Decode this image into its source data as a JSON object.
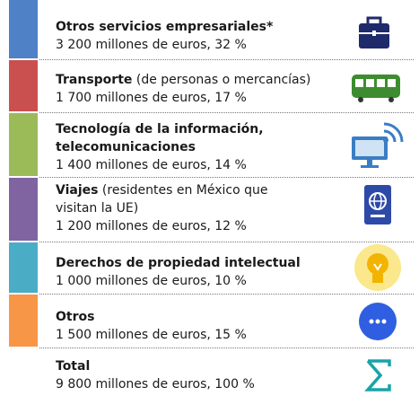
{
  "items": [
    {
      "title": "Otros servicios empresariales*",
      "detail": "3 200 millones de euros, 32 %"
    },
    {
      "title": "Transporte",
      "note": " (de personas o mercancías)",
      "detail": "1 700 millones de euros, 17 %"
    },
    {
      "title": "Tecnología de la información, telecomunicaciones",
      "detail": "1 400 millones de euros, 14 %"
    },
    {
      "title": "Viajes",
      "note": " (residentes en México que visitan la UE)",
      "detail": "1 200 millones de euros, 12 %"
    },
    {
      "title": "Derechos de propiedad intelectual",
      "detail": "1 000 millones de euros, 10 %"
    },
    {
      "title": "Otros",
      "detail": "1 500 millones de euros, 15 %"
    }
  ],
  "total": {
    "title": "Total",
    "detail": "9 800 millones de euros, 100 %"
  }
}
